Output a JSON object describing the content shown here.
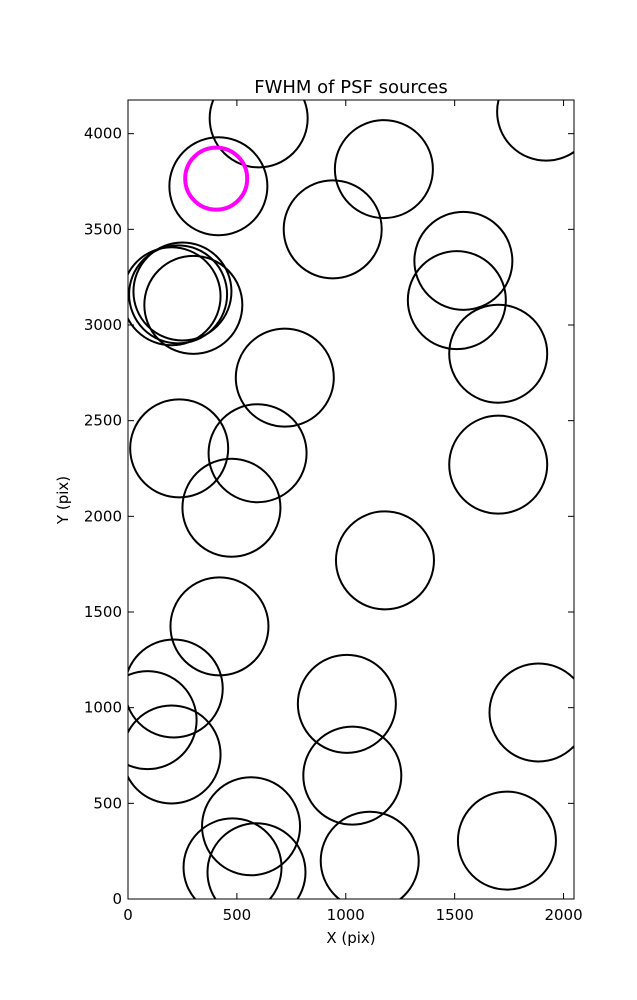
{
  "chart_data": {
    "type": "scatter",
    "title": "FWHM of PSF sources",
    "xlabel": "X (pix)",
    "ylabel": "Y (pix)",
    "xlim": [
      0,
      2048
    ],
    "ylim": [
      0,
      4176
    ],
    "xticks": [
      0,
      500,
      1000,
      1500,
      2000
    ],
    "yticks": [
      0,
      500,
      1000,
      1500,
      2000,
      2500,
      3000,
      3500,
      4000
    ],
    "grid": false,
    "legend": "none",
    "marker": "open circle",
    "colors": {
      "default": "#000000",
      "highlight": "#ff00ff"
    },
    "series": [
      {
        "points": [
          {
            "x": 1920,
            "y": 4115
          },
          {
            "x": 600,
            "y": 4080
          },
          {
            "x": 415,
            "y": 3725
          },
          {
            "x": 1175,
            "y": 3815
          },
          {
            "x": 940,
            "y": 3500
          },
          {
            "x": 1540,
            "y": 3335
          },
          {
            "x": 1510,
            "y": 3130
          },
          {
            "x": 1700,
            "y": 2850
          },
          {
            "x": 250,
            "y": 3175
          },
          {
            "x": 230,
            "y": 3160
          },
          {
            "x": 200,
            "y": 3150
          },
          {
            "x": 300,
            "y": 3105
          },
          {
            "x": 720,
            "y": 2725
          },
          {
            "x": 235,
            "y": 2355
          },
          {
            "x": 595,
            "y": 2330
          },
          {
            "x": 475,
            "y": 2045
          },
          {
            "x": 1700,
            "y": 2270
          },
          {
            "x": 1180,
            "y": 1770
          },
          {
            "x": 420,
            "y": 1425
          },
          {
            "x": 210,
            "y": 1100
          },
          {
            "x": 90,
            "y": 935
          },
          {
            "x": 200,
            "y": 755
          },
          {
            "x": 1005,
            "y": 1020
          },
          {
            "x": 1885,
            "y": 975
          },
          {
            "x": 1030,
            "y": 645
          },
          {
            "x": 565,
            "y": 380
          },
          {
            "x": 480,
            "y": 165
          },
          {
            "x": 590,
            "y": 140
          },
          {
            "x": 1110,
            "y": 200
          },
          {
            "x": 1740,
            "y": 305
          }
        ]
      },
      {
        "points": [
          {
            "x": 405,
            "y": 3765
          }
        ]
      }
    ]
  }
}
